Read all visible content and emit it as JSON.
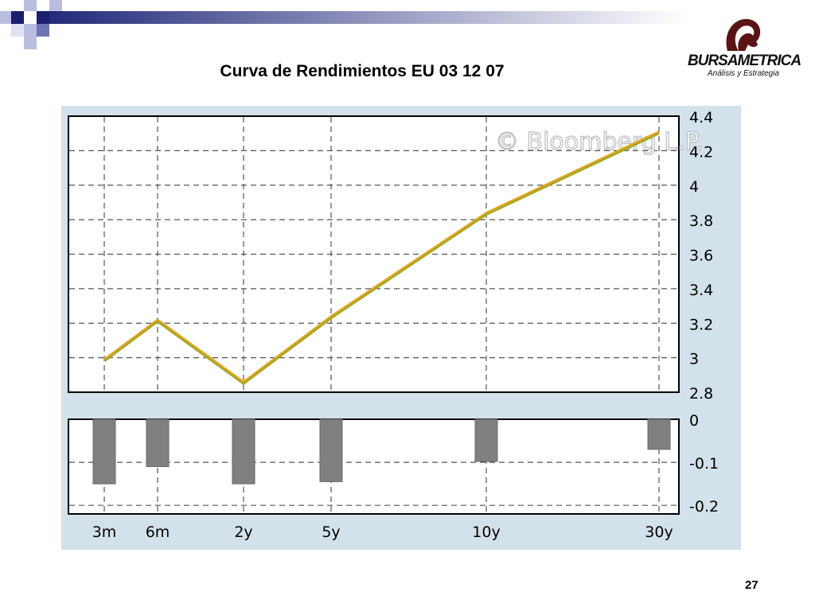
{
  "slide": {
    "title": "Curva de Rendimientos EU 03 12 07",
    "page_number": "27",
    "logo": {
      "name": "BURSAMETRICA",
      "tagline": "Análisis y Estrategia",
      "icon": "horse-head-icon"
    },
    "watermark": "© Bloomberg L.P.",
    "colors": {
      "panel_bg": "#d3e1ea",
      "line": "#e2a21a",
      "line_shadow": "#9aab23",
      "bar": "#808080",
      "deco": "#232a7a"
    }
  },
  "chart_data": [
    {
      "type": "line",
      "categories": [
        "3m",
        "6m",
        "2y",
        "5y",
        "10y",
        "30y"
      ],
      "series": [
        {
          "values": [
            2.99,
            3.22,
            2.86,
            3.24,
            3.84,
            4.31
          ]
        }
      ],
      "title": "",
      "xlabel": "",
      "ylabel": "",
      "ylim": [
        2.8,
        4.4
      ],
      "yticks": [
        "4.4",
        "4.2",
        "4",
        "3.8",
        "3.6",
        "3.4",
        "3.2",
        "3",
        "2.8"
      ],
      "grid": true,
      "y_axis_side": "right"
    },
    {
      "type": "bar",
      "categories": [
        "3m",
        "6m",
        "2y",
        "5y",
        "10y",
        "30y"
      ],
      "values": [
        -0.15,
        -0.11,
        -0.15,
        -0.145,
        -0.098,
        -0.07
      ],
      "ylim": [
        -0.22,
        0
      ],
      "yticks": [
        "0",
        "-0.1",
        "-0.2"
      ],
      "xticks": [
        "3m",
        "6m",
        "2y",
        "5y",
        "10y",
        "30y"
      ],
      "grid": true,
      "y_axis_side": "right"
    }
  ]
}
